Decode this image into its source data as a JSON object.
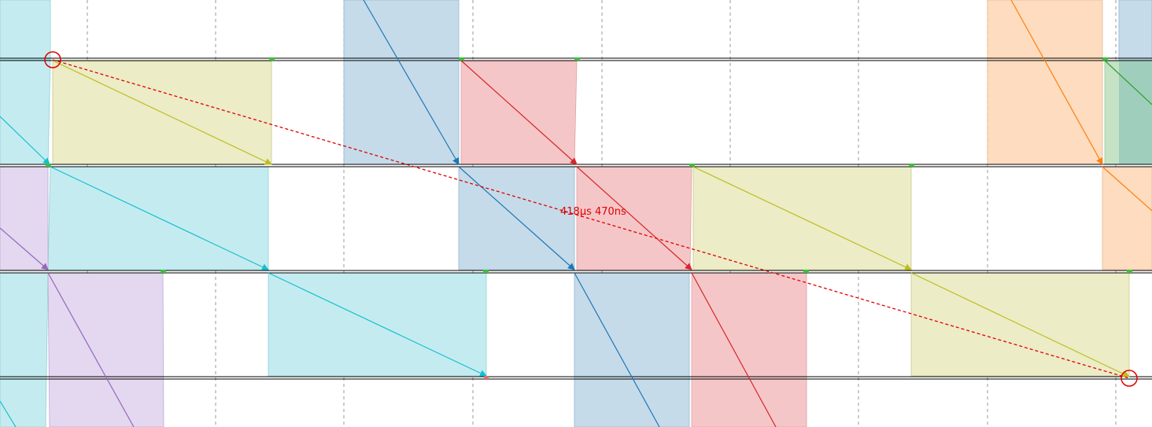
{
  "colors": {
    "background": "#ffffff",
    "grid": "#9a9a9a",
    "lane_line": "#000000",
    "endpoint": "#3cc03c",
    "measure": "#e00000",
    "cyan_fill": "#c4ecf0",
    "cyan_stroke": "#17becf",
    "olive_fill": "#ececc6",
    "olive_stroke": "#bcbd22",
    "blue_fill": "#c5dbea",
    "blue_stroke": "#1f77b4",
    "red_fill": "#f5c6c8",
    "red_stroke": "#d62728",
    "purple_fill": "#e3d8ef",
    "purple_stroke": "#9467bd",
    "orange_fill": "#fddcbf",
    "orange_stroke": "#ff7f0e",
    "green_fill": "#c5e2c5",
    "green_stroke": "#2ca02c",
    "teal_fill": "#9fcfbc"
  },
  "lanes": [
    "lane-1",
    "lane-2",
    "lane-3",
    "lane-4"
  ],
  "measurement": {
    "label": "418µs 470ns",
    "style": "dashed"
  }
}
